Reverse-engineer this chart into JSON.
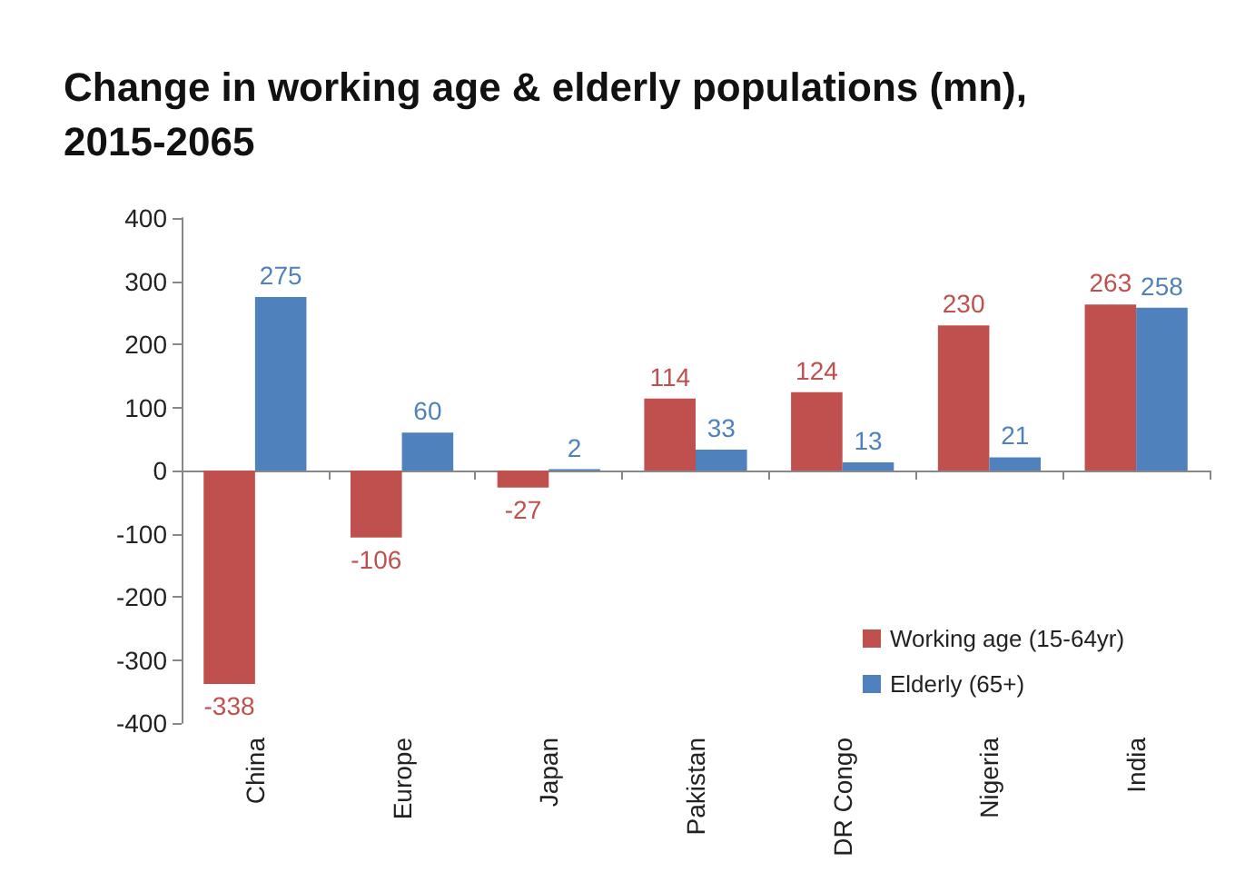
{
  "chart_data": {
    "type": "bar",
    "title": "Change in working age & elderly populations (mn),\n2015-2065",
    "categories": [
      "China",
      "Europe",
      "Japan",
      "Pakistan",
      "DR Congo",
      "Nigeria",
      "India"
    ],
    "series": [
      {
        "name": "Working age (15-64yr)",
        "color": "#c0504d",
        "values": [
          -338,
          -106,
          -27,
          114,
          124,
          230,
          263
        ]
      },
      {
        "name": "Elderly (65+)",
        "color": "#4f81bd",
        "values": [
          275,
          60,
          2,
          33,
          13,
          21,
          258
        ]
      }
    ],
    "ylim": [
      -400,
      400
    ],
    "yticks": [
      -400,
      -300,
      -200,
      -100,
      0,
      100,
      200,
      300,
      400
    ],
    "legend": "bottom right",
    "data_labels": true
  }
}
